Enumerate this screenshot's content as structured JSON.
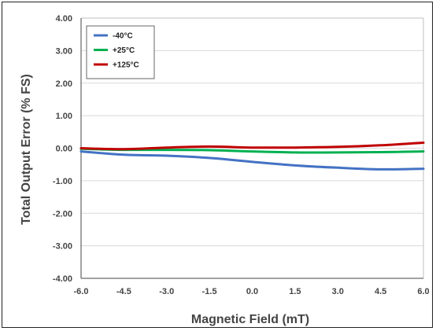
{
  "chart_data": {
    "type": "line",
    "xlabel": "Magnetic Field (mT)",
    "ylabel": "Total Output Error (% FS)",
    "xlim": [
      -6.0,
      6.0
    ],
    "ylim": [
      -4.0,
      4.0
    ],
    "x_ticks": [
      "-6.0",
      "-4.5",
      "-3.0",
      "-1.5",
      "0.0",
      "1.5",
      "3.0",
      "4.5",
      "6.0"
    ],
    "y_ticks": [
      "4.00",
      "3.00",
      "2.00",
      "1.00",
      "0.00",
      "-1.00",
      "-2.00",
      "-3.00",
      "-4.00"
    ],
    "grid": "horizontal",
    "legend_position": "top-left",
    "series": [
      {
        "name": "-40°C",
        "color": "#4472c4",
        "x": [
          -6.0,
          -4.5,
          -3.0,
          -1.5,
          0.0,
          1.5,
          3.0,
          4.5,
          6.0
        ],
        "y": [
          -0.1,
          -0.2,
          -0.23,
          -0.3,
          -0.42,
          -0.53,
          -0.6,
          -0.65,
          -0.63
        ]
      },
      {
        "name": "+25°C",
        "color": "#00b050",
        "x": [
          -6.0,
          -4.5,
          -3.0,
          -1.5,
          0.0,
          1.5,
          3.0,
          4.5,
          6.0
        ],
        "y": [
          -0.02,
          -0.05,
          -0.05,
          -0.06,
          -0.1,
          -0.13,
          -0.13,
          -0.12,
          -0.1
        ]
      },
      {
        "name": "+125°C",
        "color": "#c00000",
        "x": [
          -6.0,
          -4.5,
          -3.0,
          -1.5,
          0.0,
          1.5,
          3.0,
          4.5,
          6.0
        ],
        "y": [
          0.0,
          -0.03,
          0.02,
          0.05,
          0.02,
          0.02,
          0.04,
          0.09,
          0.17
        ]
      }
    ]
  }
}
